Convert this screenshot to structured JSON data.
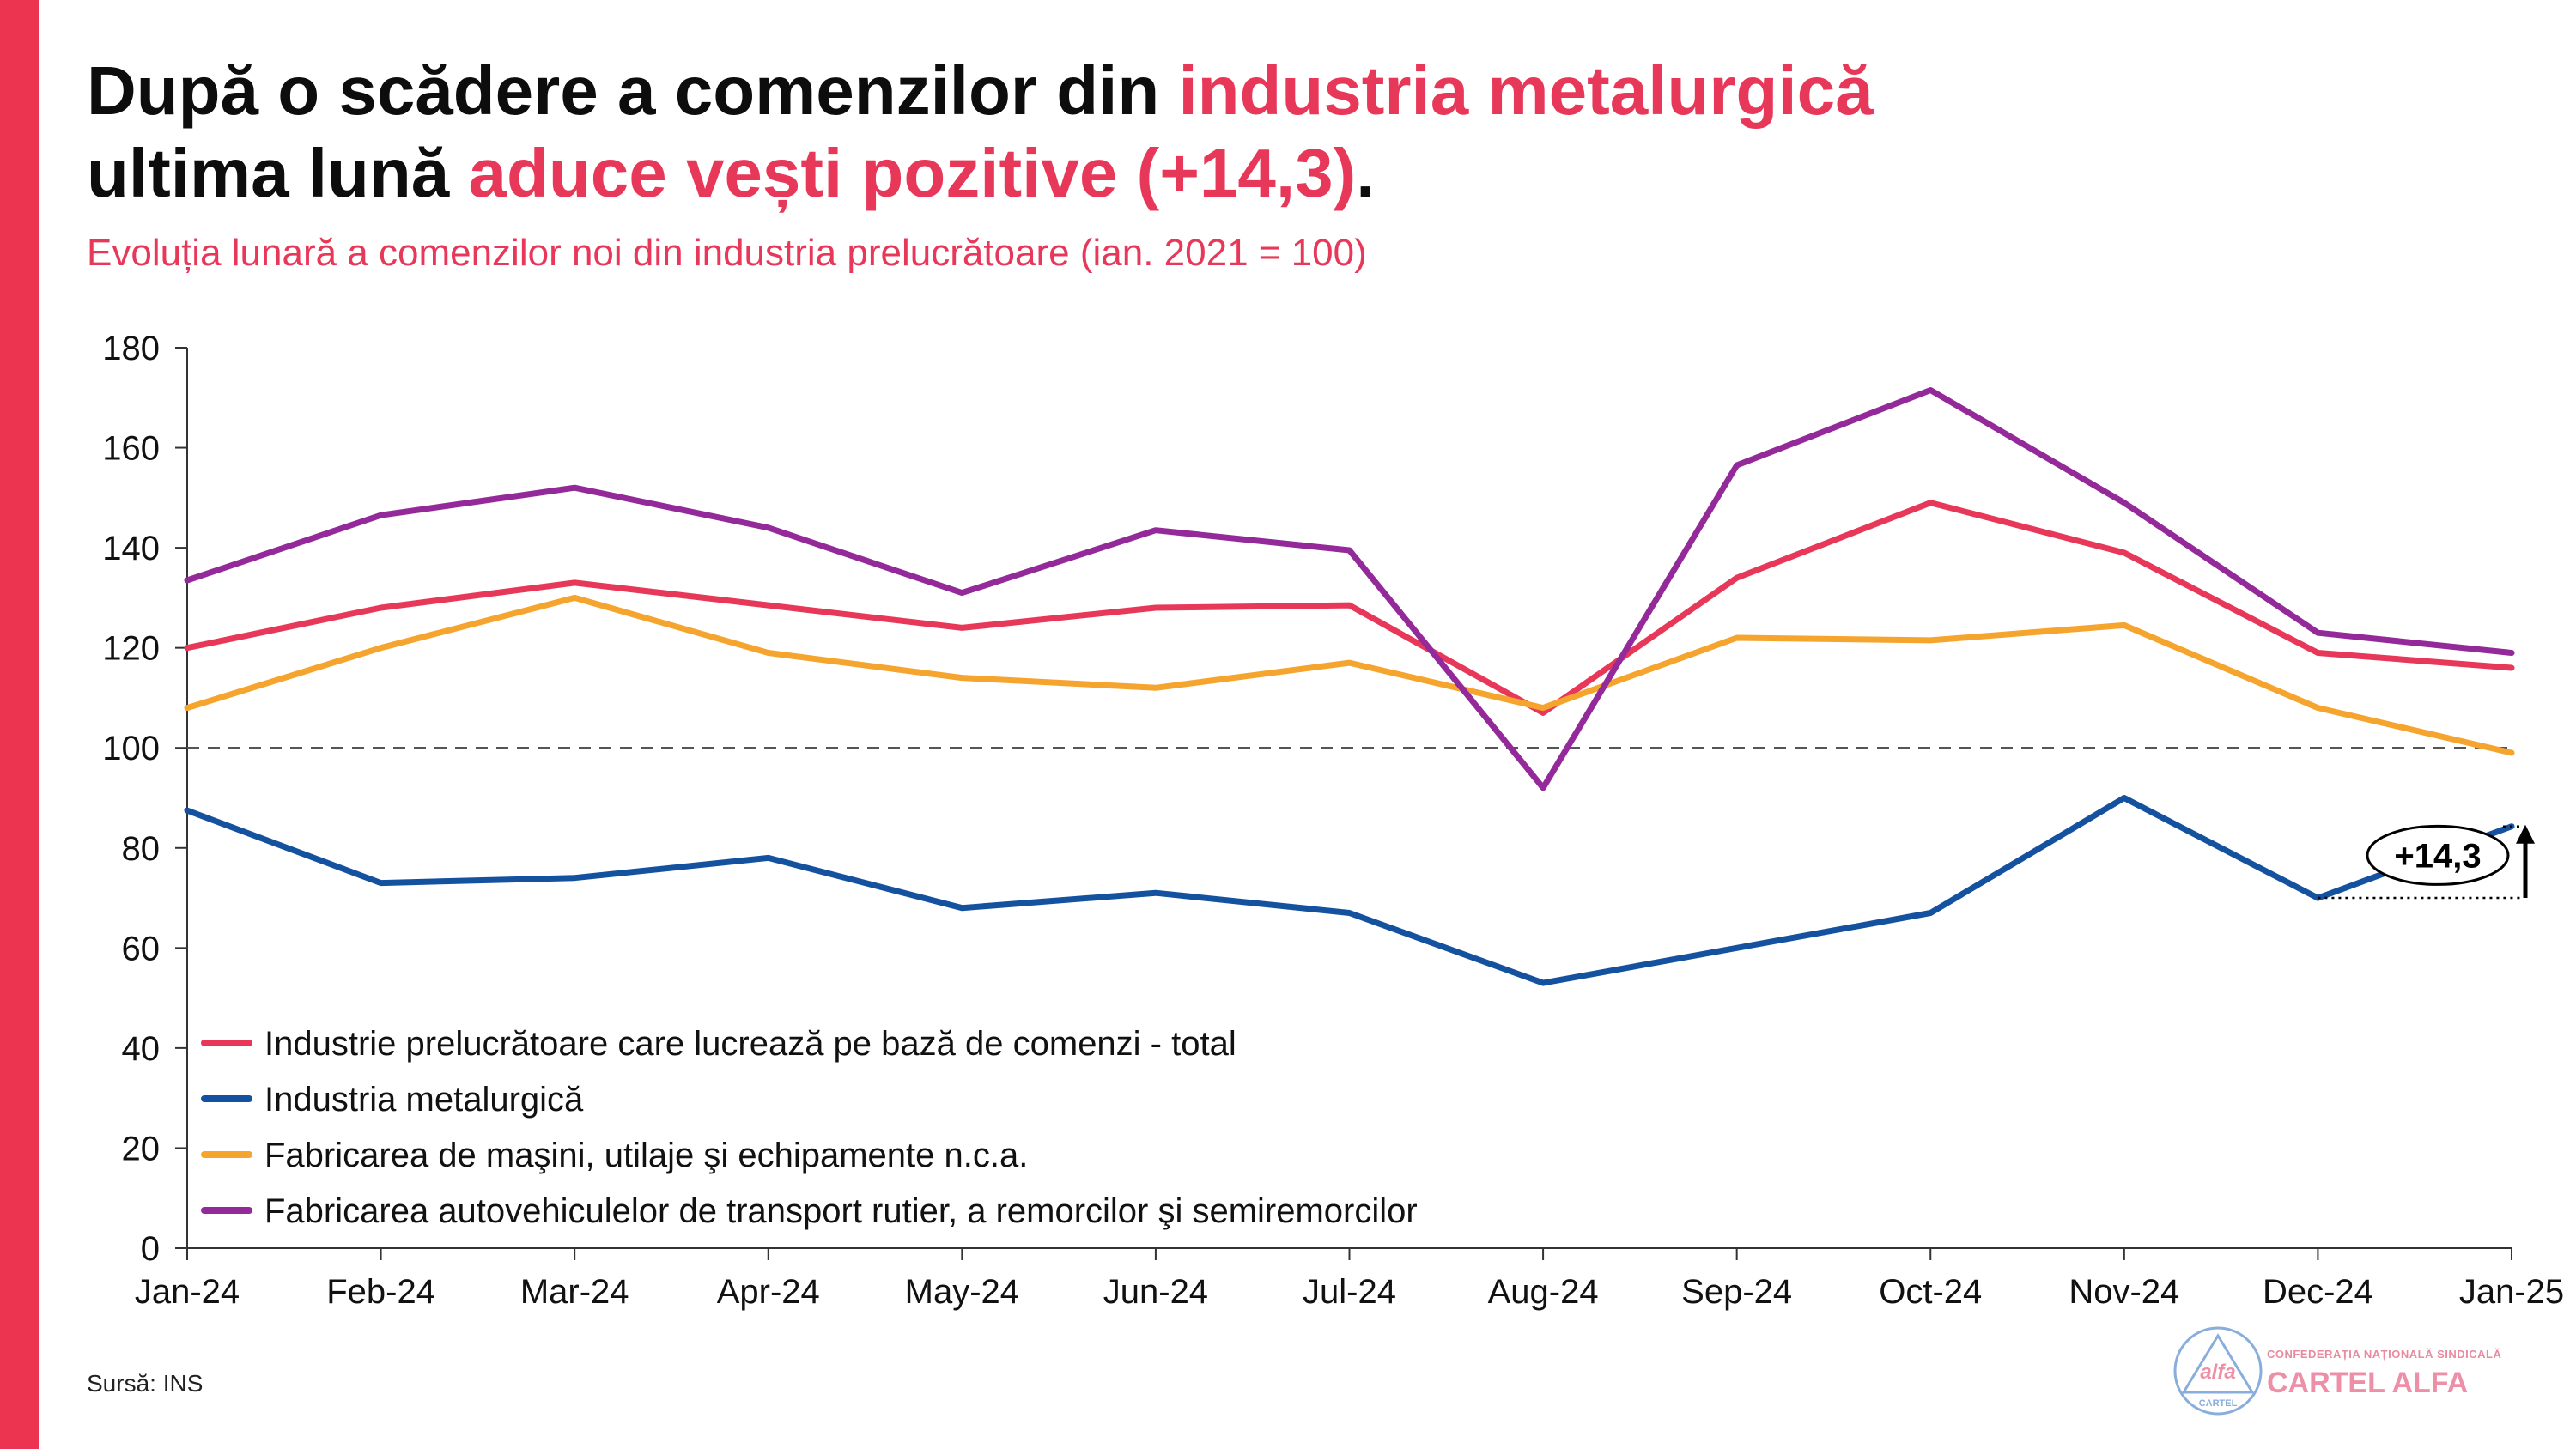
{
  "header": {
    "title_part1": "După o scădere a comenzilor din ",
    "title_highlight1": "industria metalurgică",
    "title_part2": "ultima lună ",
    "title_highlight2": "aduce vești pozitive (+14,3)",
    "title_end": ".",
    "subtitle": "Evoluția lunară a comenzilor noi din industria prelucrătoare (ian. 2021 = 100)"
  },
  "footer": {
    "source": "Sursă: INS"
  },
  "logo": {
    "org_line": "CONFEDERAȚIA NAȚIONALĂ SINDICALĂ",
    "name": "CARTEL ALFA",
    "emblem_word": "alfa",
    "emblem_sub": "CARTEL"
  },
  "colors": {
    "accent": "#e8385a",
    "side_bar": "#ec3450"
  },
  "chart_data": {
    "type": "line",
    "categories": [
      "Jan-24",
      "Feb-24",
      "Mar-24",
      "Apr-24",
      "May-24",
      "Jun-24",
      "Jul-24",
      "Aug-24",
      "Sep-24",
      "Oct-24",
      "Nov-24",
      "Dec-24",
      "Jan-25"
    ],
    "ylim": [
      0,
      180
    ],
    "yticks": [
      0,
      20,
      40,
      60,
      80,
      100,
      120,
      140,
      160,
      180
    ],
    "reference_line": 100,
    "legend_position": "bottom-left",
    "series": [
      {
        "name": "Industrie prelucrătoare care lucrează pe bază de comenzi - total",
        "color": "#e8385a",
        "values": [
          120,
          128,
          133,
          128.5,
          124,
          128,
          128.5,
          107,
          134,
          149,
          139,
          119,
          116
        ]
      },
      {
        "name": "Industria metalurgică",
        "color": "#1452a0",
        "values": [
          87.5,
          73,
          74,
          78,
          68,
          71,
          67,
          53,
          60,
          67,
          90,
          70,
          84.3
        ]
      },
      {
        "name": "Fabricarea de maşini, utilaje şi echipamente n.c.a.",
        "color": "#f5a42e",
        "values": [
          108,
          120,
          130,
          119,
          114,
          112,
          117,
          108,
          122,
          121.5,
          124.5,
          108,
          99
        ]
      },
      {
        "name": "Fabricarea autovehiculelor de transport rutier, a remorcilor şi semiremorcilor",
        "color": "#942a9a",
        "values": [
          133.5,
          146.5,
          152,
          144,
          131,
          143.5,
          139.5,
          92,
          156.5,
          171.5,
          149,
          123,
          119
        ]
      }
    ],
    "annotation": {
      "label": "+14,3",
      "from": 70,
      "to": 84.3
    }
  }
}
